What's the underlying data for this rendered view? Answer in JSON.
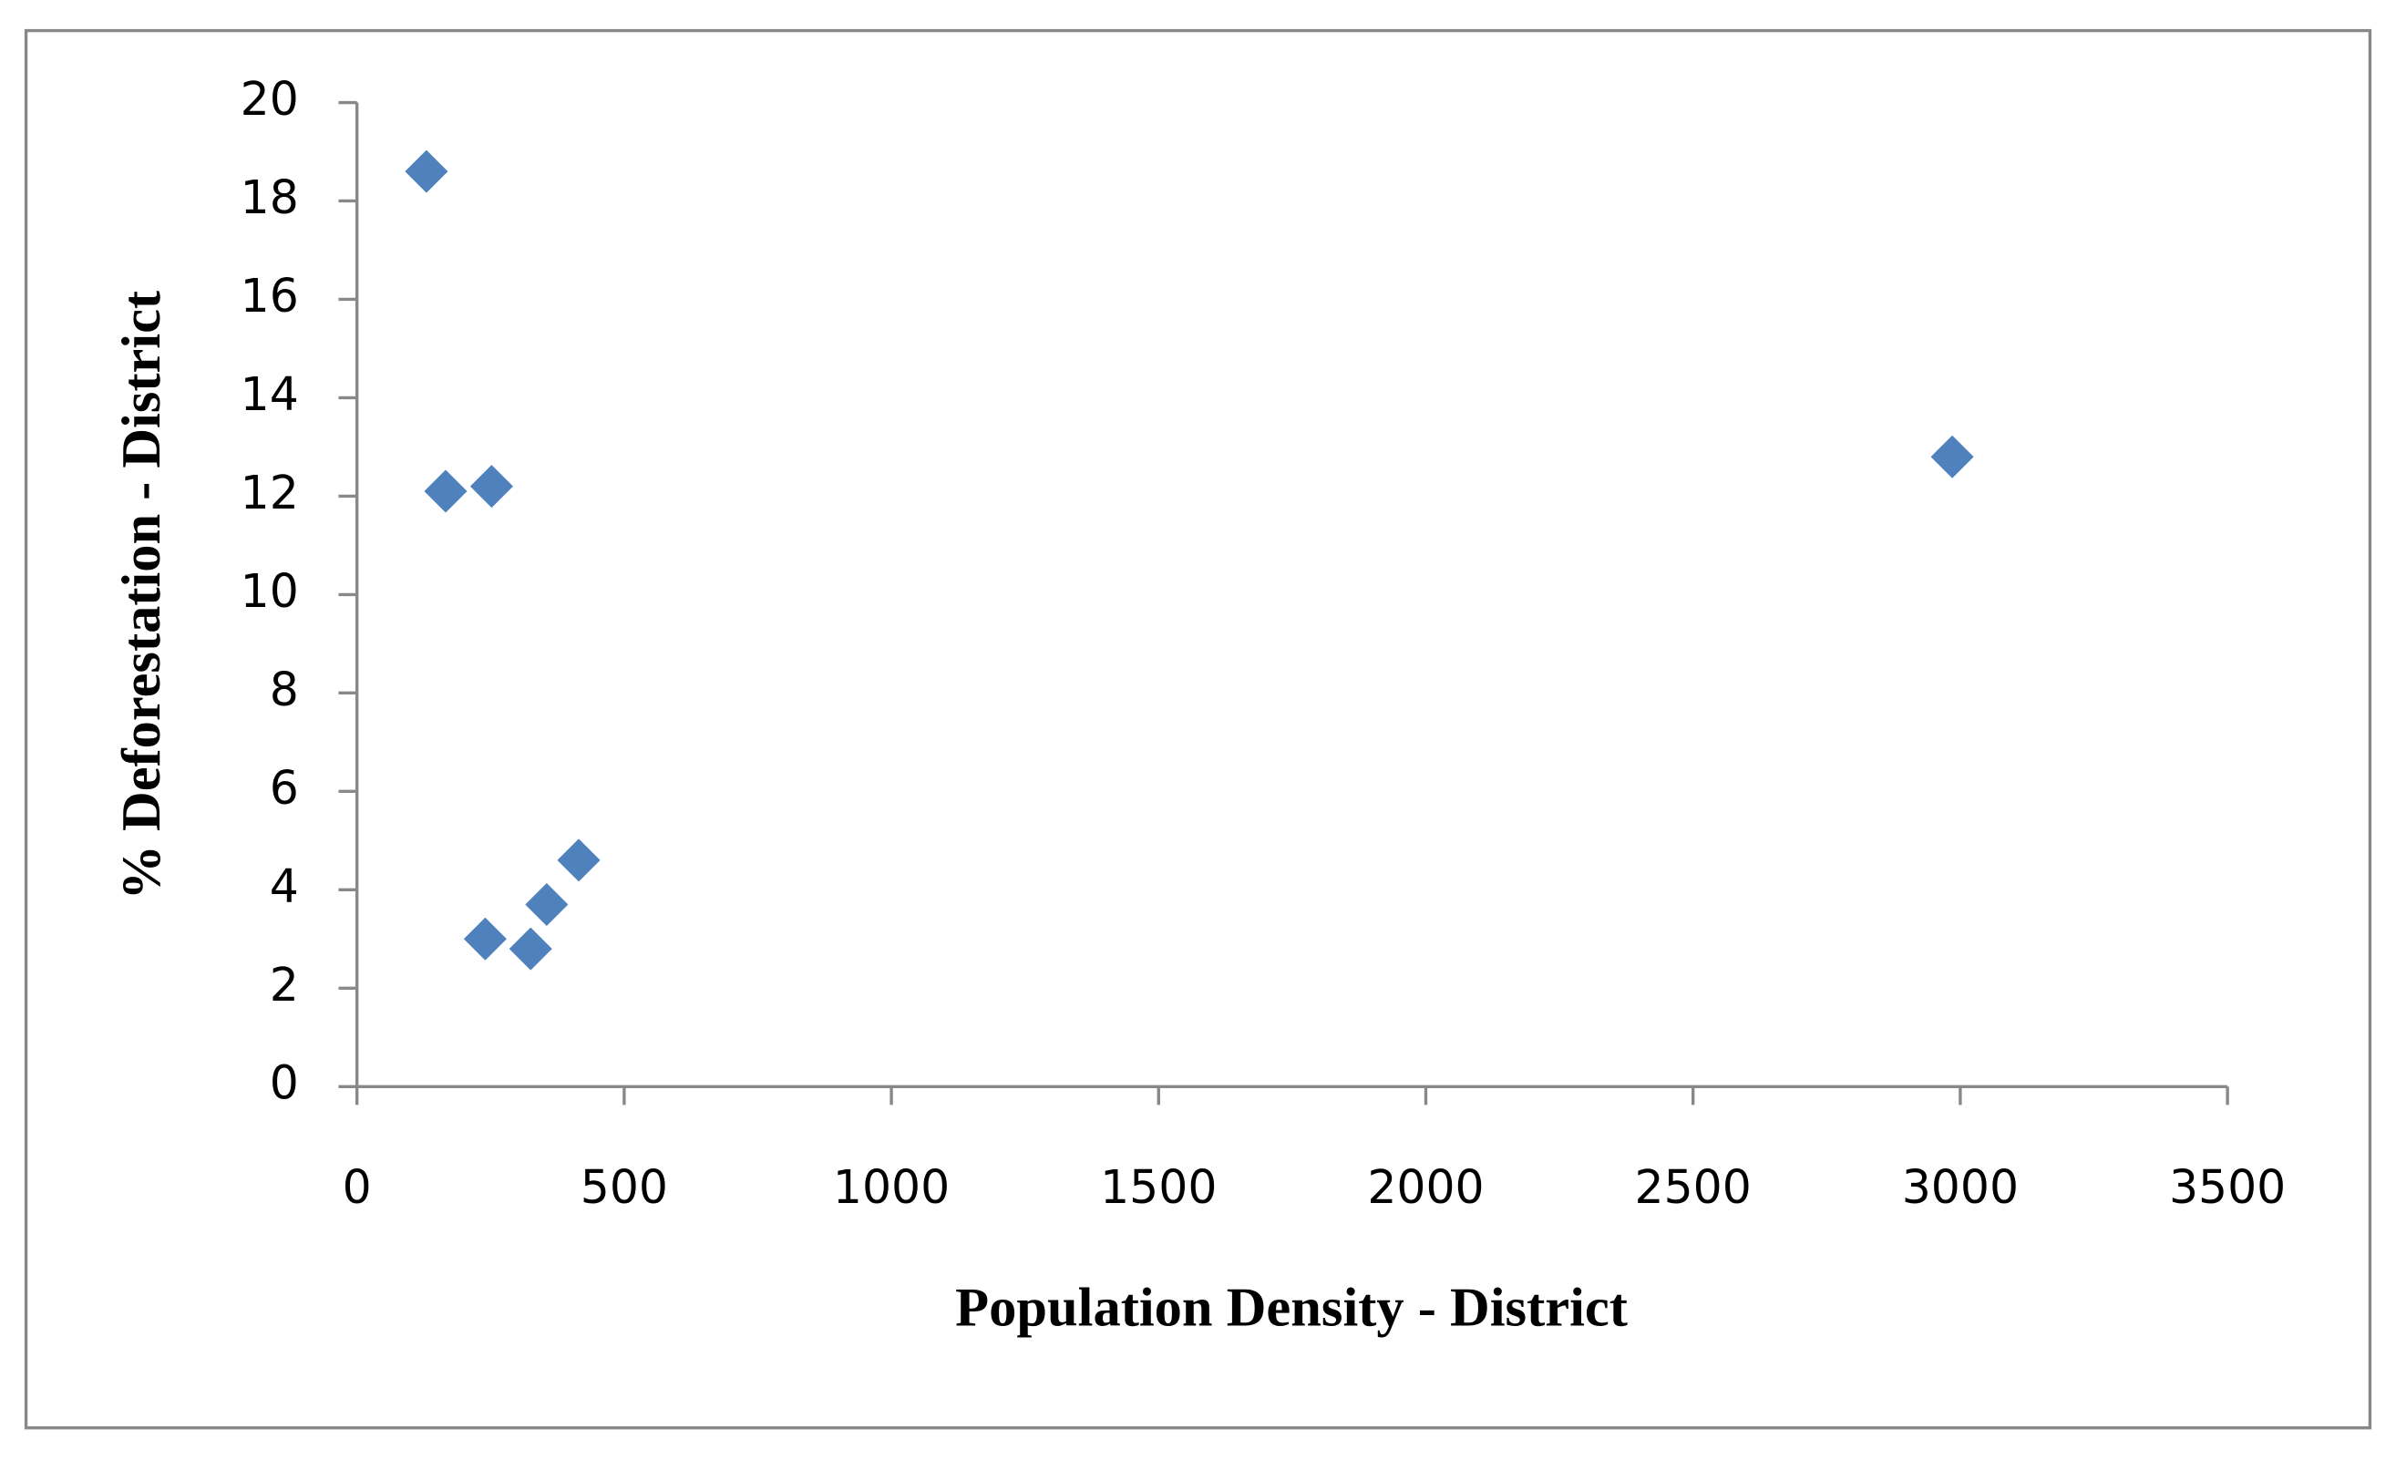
{
  "chart_data": {
    "type": "scatter",
    "x_label": "Population Density - District",
    "y_label": "% Deforestation - District",
    "series": [
      {
        "color": "#4f81bd",
        "x": [
          130,
          166,
          252,
          2985,
          415,
          355,
          240,
          325
        ],
        "values": [
          18.6,
          12.1,
          12.2,
          12.8,
          4.6,
          3.7,
          3.0,
          2.8
        ]
      }
    ],
    "xlim": [
      0,
      3500
    ],
    "xticks": [
      0,
      500,
      1000,
      1500,
      2000,
      2500,
      3000,
      3500
    ],
    "ylim": [
      0,
      20
    ],
    "yticks": [
      0,
      2,
      4,
      6,
      8,
      10,
      12,
      14,
      16,
      18,
      20
    ],
    "grid": false
  }
}
